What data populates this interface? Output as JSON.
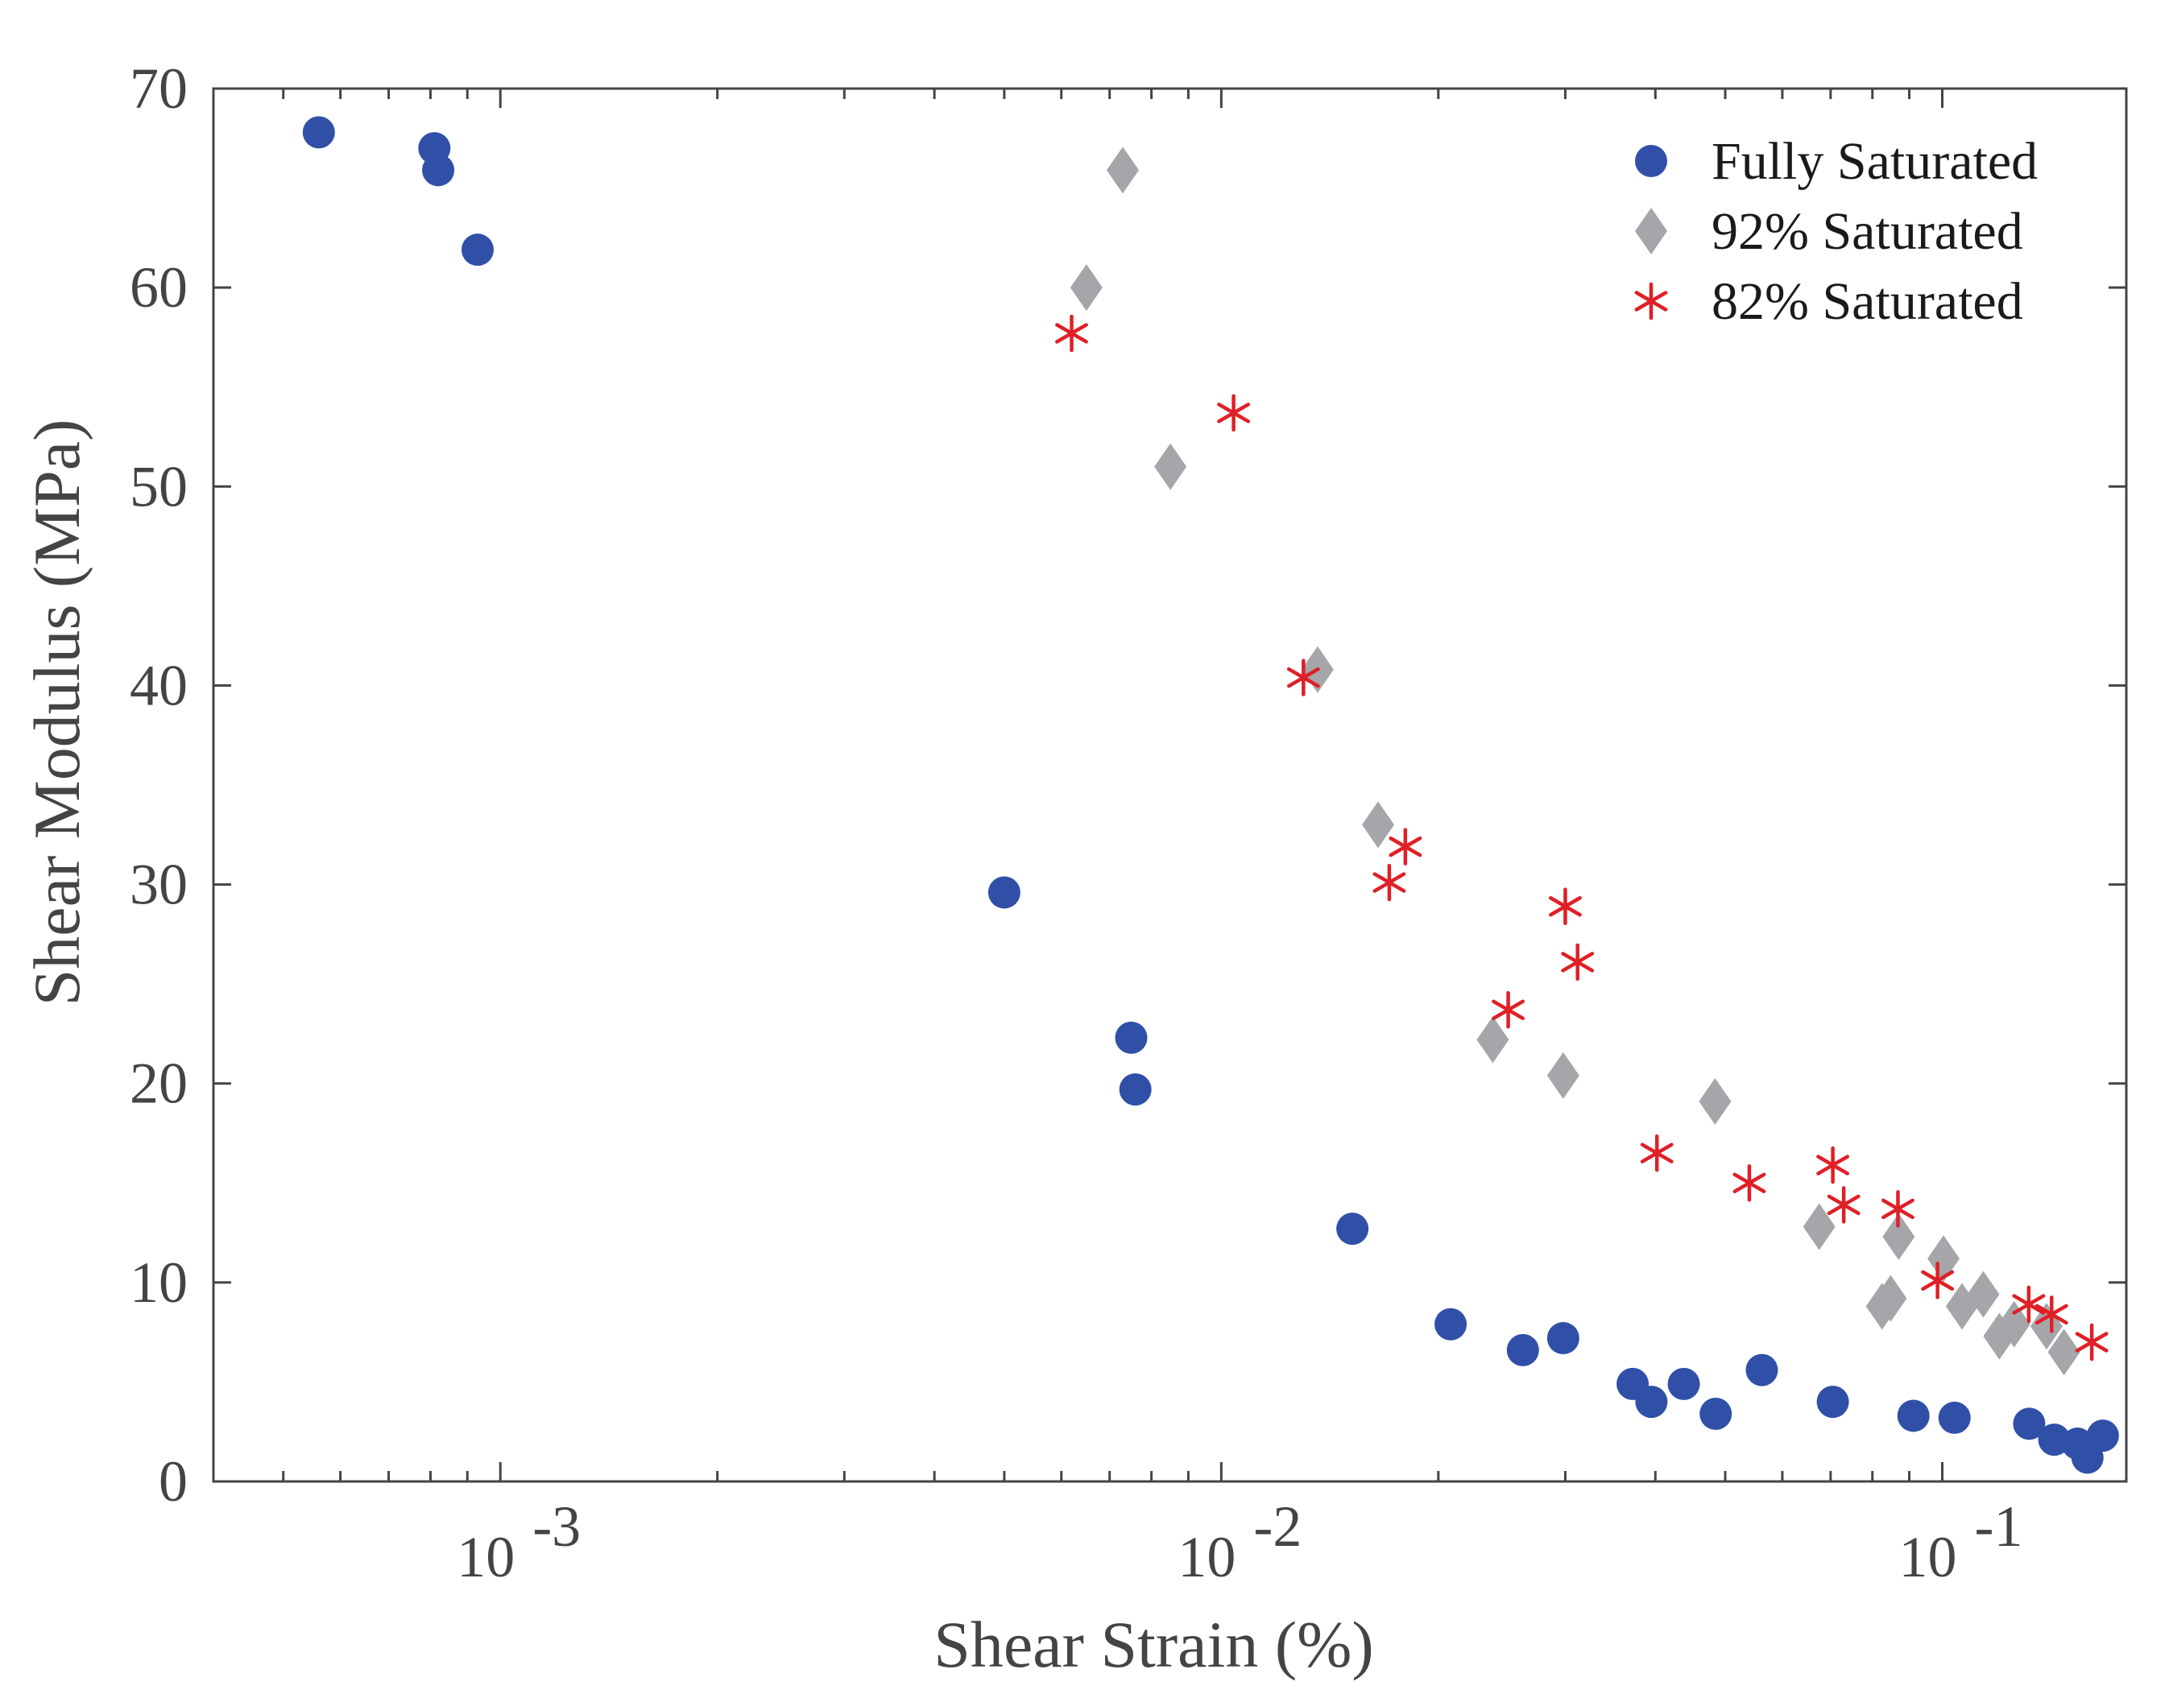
{
  "chart_data": {
    "type": "scatter",
    "title": "",
    "xlabel": "Shear Strain (%)",
    "ylabel": "Shear Modulus (MPa)",
    "xscale": "log",
    "xlim": [
      0.0004,
      0.18
    ],
    "ylim": [
      0,
      70
    ],
    "yticks": [
      0,
      10,
      20,
      30,
      40,
      50,
      60,
      70
    ],
    "xticks": [
      {
        "value": 0.001,
        "base": "10",
        "exp": "-3"
      },
      {
        "value": 0.01,
        "base": "10",
        "exp": "-2"
      },
      {
        "value": 0.1,
        "base": "10",
        "exp": "-1"
      }
    ],
    "legend_position": "top-right",
    "series": [
      {
        "name": "Fully Saturated",
        "marker": "circle",
        "color": "#3050a8",
        "points": [
          [
            0.00056,
            67.8
          ],
          [
            0.00081,
            67.0
          ],
          [
            0.00082,
            65.9
          ],
          [
            0.00093,
            61.9
          ],
          [
            0.005,
            29.6
          ],
          [
            0.0075,
            22.3
          ],
          [
            0.0076,
            19.7
          ],
          [
            0.0152,
            12.7
          ],
          [
            0.0208,
            7.9
          ],
          [
            0.0262,
            6.6
          ],
          [
            0.0298,
            7.2
          ],
          [
            0.0372,
            4.9
          ],
          [
            0.0395,
            4.0
          ],
          [
            0.0438,
            4.9
          ],
          [
            0.0485,
            3.4
          ],
          [
            0.0562,
            5.6
          ],
          [
            0.0705,
            4.0
          ],
          [
            0.0912,
            3.3
          ],
          [
            0.104,
            3.2
          ],
          [
            0.132,
            2.9
          ],
          [
            0.143,
            2.1
          ],
          [
            0.154,
            1.9
          ],
          [
            0.159,
            1.2
          ],
          [
            0.167,
            2.3
          ]
        ]
      },
      {
        "name": "92% Saturated",
        "marker": "diamond",
        "color": "#a6a6aa",
        "points": [
          [
            0.0073,
            65.9
          ],
          [
            0.0065,
            60.0
          ],
          [
            0.0085,
            51.0
          ],
          [
            0.0136,
            40.8
          ],
          [
            0.0165,
            33.0
          ],
          [
            0.0238,
            22.2
          ],
          [
            0.0298,
            20.4
          ],
          [
            0.0484,
            19.1
          ],
          [
            0.0675,
            12.8
          ],
          [
            0.0825,
            8.8
          ],
          [
            0.0848,
            9.2
          ],
          [
            0.087,
            12.3
          ],
          [
            0.1004,
            11.2
          ],
          [
            0.1065,
            8.8
          ],
          [
            0.114,
            9.4
          ],
          [
            0.12,
            7.3
          ],
          [
            0.1258,
            7.9
          ],
          [
            0.1395,
            7.8
          ],
          [
            0.1475,
            6.5
          ]
        ]
      },
      {
        "name": "82% Saturated",
        "marker": "asterisk",
        "color": "#e01f26",
        "points": [
          [
            0.0062,
            57.7
          ],
          [
            0.0104,
            53.7
          ],
          [
            0.013,
            40.4
          ],
          [
            0.0171,
            30.1
          ],
          [
            0.018,
            31.9
          ],
          [
            0.03,
            28.9
          ],
          [
            0.0312,
            26.1
          ],
          [
            0.025,
            23.7
          ],
          [
            0.0402,
            16.5
          ],
          [
            0.054,
            15.0
          ],
          [
            0.0705,
            15.9
          ],
          [
            0.073,
            13.9
          ],
          [
            0.0868,
            13.7
          ],
          [
            0.0985,
            10.1
          ],
          [
            0.1318,
            8.9
          ],
          [
            0.1418,
            8.4
          ],
          [
            0.1612,
            7.0
          ]
        ]
      }
    ]
  }
}
